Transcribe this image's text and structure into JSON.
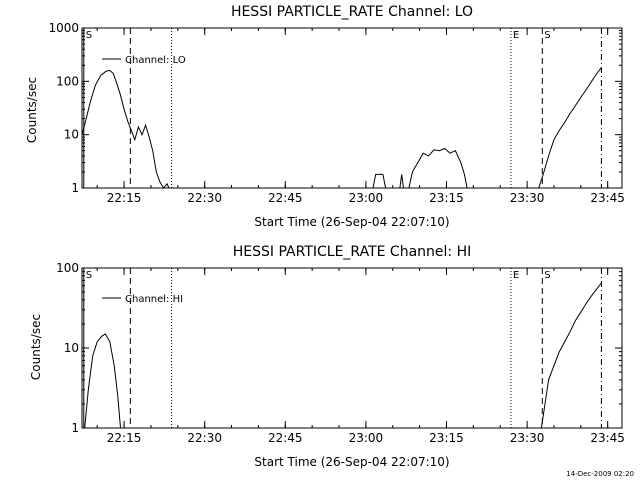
{
  "chart_data": [
    {
      "type": "line",
      "title": "HESSI PARTICLE_RATE Channel: LO",
      "xlabel": "Start Time (26-Sep-04 22:07:10)",
      "ylabel": "Counts/sec",
      "y_scale": "log",
      "ylim": [
        1,
        1000
      ],
      "xlim": [
        "22:07:10",
        "23:47:40"
      ],
      "x_ticks": [
        "22:15",
        "22:30",
        "22:45",
        "23:00",
        "23:15",
        "23:30",
        "23:45"
      ],
      "y_ticks": [
        "1",
        "10",
        "100",
        "1000"
      ],
      "legend": {
        "label": "Channel: LO",
        "position": "top-left"
      },
      "markers": [
        {
          "label": "S",
          "time": "22:07:30",
          "style": "solid"
        },
        {
          "label": "",
          "time": "22:16:10",
          "style": "dashed"
        },
        {
          "label": "",
          "time": "22:23:50",
          "style": "dotted"
        },
        {
          "label": "E",
          "time": "23:27:00",
          "style": "dotted"
        },
        {
          "label": "S",
          "time": "23:32:50",
          "style": "dashed"
        },
        {
          "label": "",
          "time": "23:43:50",
          "style": "dashdot"
        }
      ],
      "series": [
        {
          "name": "Channel: LO",
          "segments": [
            [
              [
                "22:07:10",
                10
              ],
              [
                "22:07:50",
                18
              ],
              [
                "22:08:40",
                40
              ],
              [
                "22:09:40",
                85
              ],
              [
                "22:10:40",
                130
              ],
              [
                "22:11:40",
                155
              ],
              [
                "22:12:20",
                160
              ],
              [
                "22:13:00",
                140
              ],
              [
                "22:13:40",
                90
              ],
              [
                "22:14:20",
                55
              ],
              [
                "22:15:00",
                30
              ],
              [
                "22:15:40",
                18
              ],
              [
                "22:16:20",
                12
              ],
              [
                "22:17:00",
                8
              ],
              [
                "22:17:40",
                14
              ],
              [
                "22:18:20",
                10
              ],
              [
                "22:19:00",
                15
              ],
              [
                "22:19:40",
                9
              ],
              [
                "22:20:20",
                5
              ],
              [
                "22:21:00",
                2
              ],
              [
                "22:21:40",
                1.3
              ],
              [
                "22:22:20",
                1
              ],
              [
                "22:23:00",
                1.2
              ],
              [
                "22:23:20",
                1
              ]
            ],
            [
              [
                "23:01:20",
                1
              ],
              [
                "23:01:50",
                1.8
              ],
              [
                "23:03:10",
                1.8
              ],
              [
                "23:03:40",
                1
              ]
            ],
            [
              [
                "23:06:20",
                1
              ],
              [
                "23:06:40",
                1.8
              ],
              [
                "23:07:00",
                1
              ]
            ],
            [
              [
                "23:08:00",
                1
              ],
              [
                "23:08:40",
                2
              ],
              [
                "23:09:40",
                3
              ],
              [
                "23:10:40",
                4.5
              ],
              [
                "23:11:40",
                4
              ],
              [
                "23:12:40",
                5.2
              ],
              [
                "23:13:40",
                5
              ],
              [
                "23:14:40",
                5.5
              ],
              [
                "23:15:40",
                4.5
              ],
              [
                "23:16:40",
                5
              ],
              [
                "23:17:40",
                3
              ],
              [
                "23:18:20",
                1.8
              ],
              [
                "23:18:50",
                1
              ]
            ],
            [
              [
                "23:32:10",
                1
              ],
              [
                "23:33:00",
                1.8
              ],
              [
                "23:34:00",
                4
              ],
              [
                "23:35:00",
                8
              ],
              [
                "23:36:00",
                12
              ],
              [
                "23:37:00",
                17
              ],
              [
                "23:38:00",
                25
              ],
              [
                "23:39:00",
                35
              ],
              [
                "23:40:00",
                50
              ],
              [
                "23:41:00",
                70
              ],
              [
                "23:42:00",
                100
              ],
              [
                "23:43:00",
                140
              ],
              [
                "23:43:50",
                180
              ]
            ]
          ]
        }
      ]
    },
    {
      "type": "line",
      "title": "HESSI PARTICLE_RATE Channel: HI",
      "xlabel": "Start Time (26-Sep-04 22:07:10)",
      "ylabel": "Counts/sec",
      "y_scale": "log",
      "ylim": [
        1,
        100
      ],
      "xlim": [
        "22:07:10",
        "23:47:40"
      ],
      "x_ticks": [
        "22:15",
        "22:30",
        "22:45",
        "23:00",
        "23:15",
        "23:30",
        "23:45"
      ],
      "y_ticks": [
        "1",
        "10",
        "100"
      ],
      "legend": {
        "label": "Channel: HI",
        "position": "top-left"
      },
      "markers": [
        {
          "label": "S",
          "time": "22:07:30",
          "style": "solid"
        },
        {
          "label": "",
          "time": "22:16:10",
          "style": "dashed"
        },
        {
          "label": "",
          "time": "22:23:50",
          "style": "dotted"
        },
        {
          "label": "E",
          "time": "23:27:00",
          "style": "dotted"
        },
        {
          "label": "S",
          "time": "23:32:50",
          "style": "dashed"
        },
        {
          "label": "",
          "time": "23:43:50",
          "style": "dashdot"
        }
      ],
      "series": [
        {
          "name": "Channel: HI",
          "segments": [
            [
              [
                "22:07:40",
                1
              ],
              [
                "22:08:20",
                3
              ],
              [
                "22:09:10",
                8
              ],
              [
                "22:10:00",
                12
              ],
              [
                "22:10:50",
                14
              ],
              [
                "22:11:30",
                15
              ],
              [
                "22:12:20",
                12
              ],
              [
                "22:13:10",
                6
              ],
              [
                "22:13:50",
                2.5
              ],
              [
                "22:14:20",
                1
              ]
            ],
            [
              [
                "23:32:40",
                1
              ],
              [
                "23:33:20",
                2
              ],
              [
                "23:34:00",
                4
              ],
              [
                "23:35:00",
                6
              ],
              [
                "23:36:00",
                9
              ],
              [
                "23:37:00",
                12
              ],
              [
                "23:38:00",
                16
              ],
              [
                "23:39:00",
                22
              ],
              [
                "23:40:00",
                28
              ],
              [
                "23:41:00",
                36
              ],
              [
                "23:42:00",
                45
              ],
              [
                "23:43:00",
                55
              ],
              [
                "23:43:50",
                65
              ]
            ]
          ]
        }
      ]
    }
  ],
  "footer": {
    "timestamp": "14-Dec-2009 02:20"
  }
}
